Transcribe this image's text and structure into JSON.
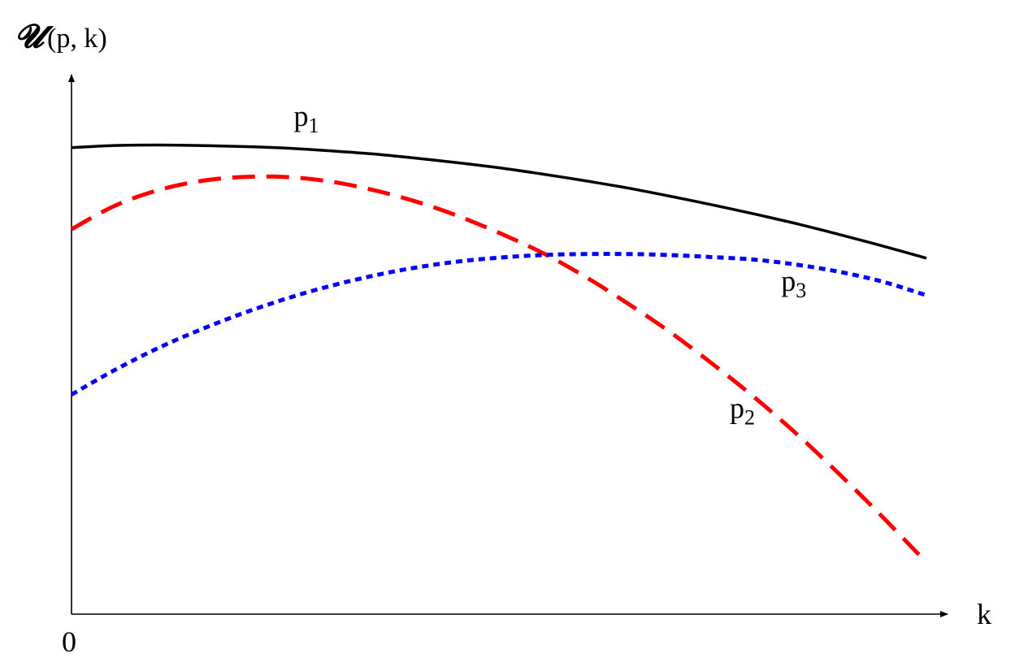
{
  "chart_data": {
    "type": "line",
    "title": "",
    "xlabel": "k",
    "ylabel_script": "𝓤",
    "ylabel_args": "(p, k)",
    "origin_label": "0",
    "xlim": [
      0,
      1
    ],
    "ylim": [
      0,
      1
    ],
    "grid": false,
    "series": [
      {
        "name": "p",
        "subscript": "1",
        "color": "#000000",
        "style": "solid",
        "x": [
          0.0,
          0.05,
          0.1,
          0.15,
          0.2,
          0.25,
          0.3,
          0.35,
          0.4,
          0.45,
          0.5,
          0.55,
          0.6,
          0.65,
          0.7,
          0.75,
          0.8,
          0.85,
          0.9,
          0.95,
          1.0
        ],
        "y": [
          0.903,
          0.907,
          0.908,
          0.907,
          0.905,
          0.902,
          0.897,
          0.891,
          0.883,
          0.874,
          0.864,
          0.852,
          0.839,
          0.825,
          0.809,
          0.792,
          0.774,
          0.755,
          0.734,
          0.712,
          0.689
        ]
      },
      {
        "name": "p",
        "subscript": "2",
        "color": "#ff0000",
        "style": "dashed",
        "x": [
          0.0,
          0.05,
          0.1,
          0.15,
          0.2,
          0.25,
          0.3,
          0.35,
          0.4,
          0.45,
          0.5,
          0.55,
          0.6,
          0.65,
          0.7,
          0.75,
          0.8,
          0.85,
          0.9,
          0.95,
          1.0
        ],
        "y": [
          0.745,
          0.79,
          0.82,
          0.838,
          0.846,
          0.846,
          0.838,
          0.822,
          0.8,
          0.772,
          0.738,
          0.7,
          0.654,
          0.602,
          0.546,
          0.484,
          0.418,
          0.346,
          0.268,
          0.186,
          0.1
        ]
      },
      {
        "name": "p",
        "subscript": "3",
        "color": "#0000ff",
        "style": "dotted",
        "x": [
          0.0,
          0.05,
          0.1,
          0.15,
          0.2,
          0.25,
          0.3,
          0.35,
          0.4,
          0.45,
          0.5,
          0.55,
          0.6,
          0.65,
          0.7,
          0.75,
          0.8,
          0.85,
          0.9,
          0.95,
          1.0
        ],
        "y": [
          0.425,
          0.472,
          0.514,
          0.55,
          0.582,
          0.61,
          0.634,
          0.654,
          0.67,
          0.682,
          0.69,
          0.695,
          0.697,
          0.697,
          0.695,
          0.691,
          0.686,
          0.676,
          0.662,
          0.643,
          0.617
        ]
      }
    ],
    "annotations": [
      {
        "series": 0,
        "x": 0.26,
        "y": 0.945
      },
      {
        "series": 2,
        "x": 0.83,
        "y": 0.626
      },
      {
        "series": 1,
        "x": 0.77,
        "y": 0.38
      }
    ]
  }
}
